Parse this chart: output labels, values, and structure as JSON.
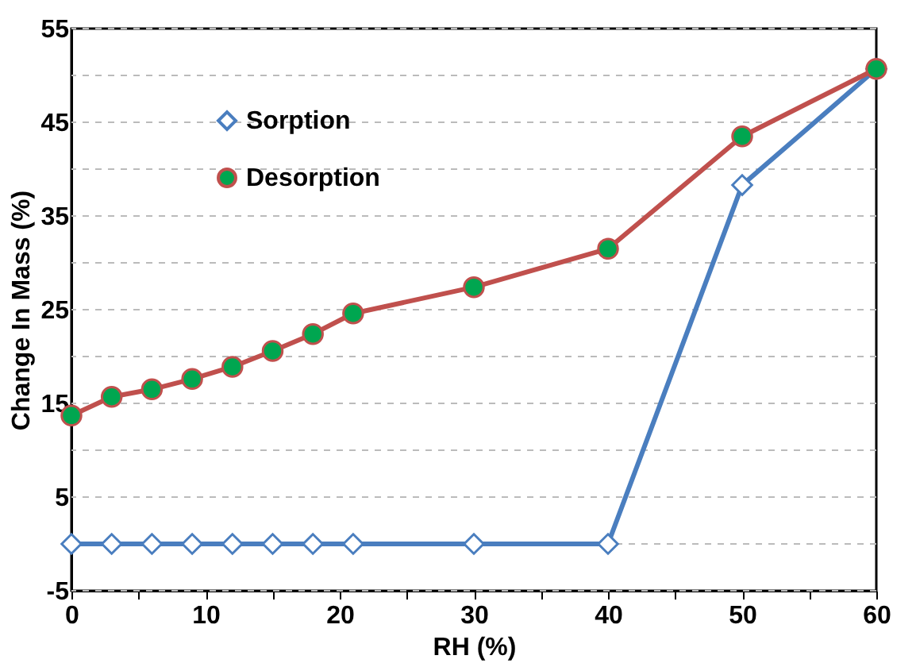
{
  "chart_data": {
    "type": "line",
    "xlabel": "RH (%)",
    "ylabel": "Change In Mass (%)",
    "x": [
      0,
      3,
      6,
      9,
      12,
      15,
      18,
      21,
      30,
      40,
      50,
      60
    ],
    "series": [
      {
        "name": "Sorption",
        "color": "#4a7ebf",
        "marker": "diamond",
        "values": [
          0,
          0,
          0,
          0,
          0,
          0,
          0,
          0,
          0,
          0,
          38.3,
          50.7
        ]
      },
      {
        "name": "Desorption",
        "color": "#c0504d",
        "marker": "circle",
        "values": [
          13.7,
          15.7,
          16.5,
          17.6,
          18.9,
          20.6,
          22.4,
          24.6,
          27.4,
          31.5,
          43.5,
          50.7
        ]
      }
    ],
    "xlim": [
      0,
      60
    ],
    "ylim": [
      -5,
      55
    ],
    "xticks": [
      0,
      {
        "value": 5,
        "label": null
      },
      10,
      {
        "value": 15,
        "label": null
      },
      20,
      {
        "value": 25,
        "label": null
      },
      30,
      {
        "value": 35,
        "label": null
      },
      40,
      {
        "value": 45,
        "label": null
      },
      50,
      {
        "value": 55,
        "label": null
      },
      60
    ],
    "yticks": [
      -5,
      {
        "value": 0,
        "label": null
      },
      5,
      {
        "value": 10,
        "label": null
      },
      15,
      {
        "value": 20,
        "label": null
      },
      25,
      {
        "value": 30,
        "label": null
      },
      35,
      {
        "value": 40,
        "label": null
      },
      45,
      {
        "value": 50,
        "label": null
      },
      55
    ],
    "grid": "y",
    "legend": "top left",
    "line_style": "solid"
  }
}
